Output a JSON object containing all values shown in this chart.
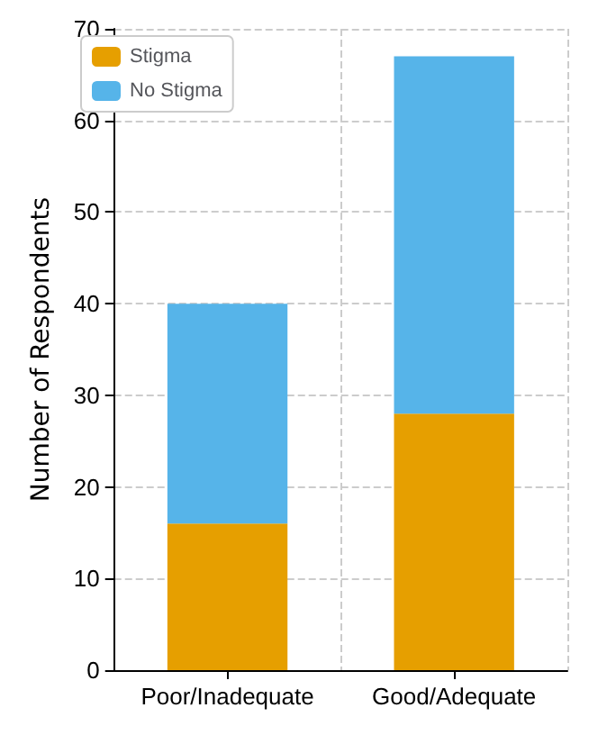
{
  "chart_data": {
    "type": "bar",
    "stacked": true,
    "ylabel": "Number of Respondents",
    "categories": [
      "Poor/Inadequate",
      "Good/Adequate"
    ],
    "series": [
      {
        "name": "Stigma",
        "color": "#e69f00",
        "values": [
          16,
          28
        ]
      },
      {
        "name": "No Stigma",
        "color": "#56b4e9",
        "values": [
          24,
          39
        ]
      }
    ],
    "ylim": [
      0,
      70
    ],
    "yticks": [
      0,
      10,
      20,
      30,
      40,
      50,
      60,
      70
    ],
    "grid": true,
    "legend": "top left"
  }
}
